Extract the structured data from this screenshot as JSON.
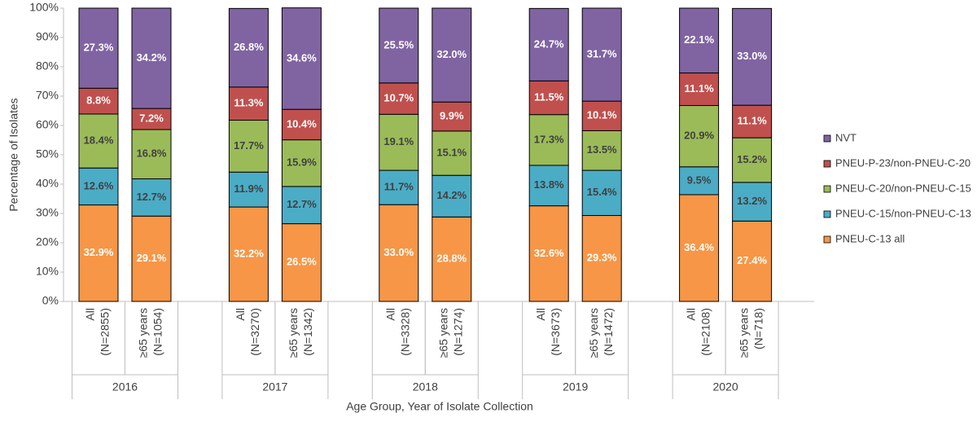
{
  "chart_data": {
    "type": "stacked_bar",
    "y_label": "Percentage of Isolates",
    "x_label": "Age Group, Year of Isolate Collection",
    "categories": [
      [
        "All",
        "(N=2855)"
      ],
      [
        "≥65 years",
        "(N=1054)"
      ],
      [
        "All",
        "(N=3270)"
      ],
      [
        "≥65 years",
        "(N=1342)"
      ],
      [
        "All",
        "(N=3328)"
      ],
      [
        "≥65 years",
        "(N=1274)"
      ],
      [
        "All",
        "(N=3673)"
      ],
      [
        "≥65 years",
        "(N=1472)"
      ],
      [
        "All",
        "(N=2108)"
      ],
      [
        "≥65 years",
        "(N=718)"
      ]
    ],
    "groups": [
      "2016",
      "2017",
      "2018",
      "2019",
      "2020"
    ],
    "series": [
      {
        "name": "PNEU-C-13 all",
        "color": "#f79646",
        "label_color": "#ffffff",
        "values": [
          32.9,
          29.1,
          32.2,
          26.5,
          33.0,
          28.8,
          32.6,
          29.3,
          36.4,
          27.4
        ],
        "value_labels": [
          "32.9%",
          "29.1%",
          "32.2%",
          "26.5%",
          "33.0%",
          "28.8%",
          "32.6%",
          "29.3%",
          "36.4%",
          "27.4%"
        ]
      },
      {
        "name": "PNEU-C-15/non-PNEU-C-13",
        "color": "#4bacc6",
        "label_color": "#404040",
        "values": [
          12.6,
          12.7,
          11.9,
          12.7,
          11.7,
          14.2,
          13.8,
          15.4,
          9.5,
          13.2
        ],
        "value_labels": [
          "12.6%",
          "12.7%",
          "11.9%",
          "12.7%",
          "11.7%",
          "14.2%",
          "13.8%",
          "15.4%",
          "9.5%",
          "13.2%"
        ]
      },
      {
        "name": "PNEU-C-20/non-PNEU-C-15",
        "color": "#9bbb59",
        "label_color": "#404040",
        "values": [
          18.4,
          16.8,
          17.7,
          15.9,
          19.1,
          15.1,
          17.3,
          13.5,
          20.9,
          15.2
        ],
        "value_labels": [
          "18.4%",
          "16.8%",
          "17.7%",
          "15.9%",
          "19.1%",
          "15.1%",
          "17.3%",
          "13.5%",
          "20.9%",
          "15.2%"
        ]
      },
      {
        "name": "PNEU-P-23/non-PNEU-C-20",
        "color": "#c0504d",
        "label_color": "#ffffff",
        "values": [
          8.8,
          7.2,
          11.3,
          10.4,
          10.7,
          9.9,
          11.5,
          10.1,
          11.1,
          11.1
        ],
        "value_labels": [
          "8.8%",
          "7.2%",
          "11.3%",
          "10.4%",
          "10.7%",
          "9.9%",
          "11.5%",
          "10.1%",
          "11.1%",
          "11.1%"
        ]
      },
      {
        "name": "NVT",
        "color": "#8064a2",
        "label_color": "#ffffff",
        "values": [
          27.3,
          34.2,
          26.8,
          34.6,
          25.5,
          32.0,
          24.7,
          31.7,
          22.1,
          33.0
        ],
        "value_labels": [
          "27.3%",
          "34.2%",
          "26.8%",
          "34.6%",
          "25.5%",
          "32.0%",
          "24.7%",
          "31.7%",
          "22.1%",
          "33.0%"
        ]
      }
    ],
    "ylim": [
      0,
      100
    ],
    "yticks": [
      {
        "value": 0,
        "label": "0%"
      },
      {
        "value": 10,
        "label": "10%"
      },
      {
        "value": 20,
        "label": "20%"
      },
      {
        "value": 30,
        "label": "30%"
      },
      {
        "value": 40,
        "label": "40%"
      },
      {
        "value": 50,
        "label": "50%"
      },
      {
        "value": 60,
        "label": "60%"
      },
      {
        "value": 70,
        "label": "70%"
      },
      {
        "value": 80,
        "label": "80%"
      },
      {
        "value": 90,
        "label": "90%"
      },
      {
        "value": 100,
        "label": "100%"
      }
    ],
    "legend": "right"
  }
}
